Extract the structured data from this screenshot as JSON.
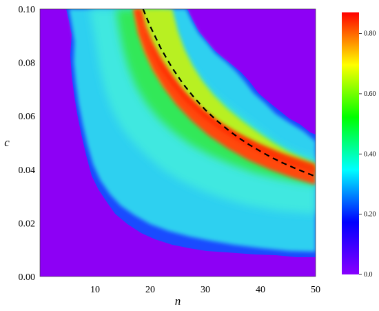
{
  "chart_data": {
    "type": "heatmap",
    "title": "",
    "xlabel": "n",
    "ylabel": "c",
    "xlim": [
      0,
      50
    ],
    "ylim": [
      0,
      0.1
    ],
    "x_ticks": [
      "10",
      "20",
      "30",
      "40",
      "50"
    ],
    "y_ticks": [
      "0.00",
      "0.02",
      "0.04",
      "0.06",
      "0.08",
      "0.10"
    ],
    "colorbar": {
      "range": [
        0,
        0.87
      ],
      "tick_labels": [
        "0.0",
        "0.20",
        "0.40",
        "0.60",
        "0.80"
      ],
      "tick_values": [
        0,
        0.2,
        0.4,
        0.6,
        0.8
      ],
      "colors": [
        "#8800ff",
        "#0000ff",
        "#00ffff",
        "#00ff00",
        "#ffff00",
        "#ff0000"
      ]
    },
    "background_color": "#8d00f5",
    "region": {
      "description_points_lower_boundary": [
        [
          5.5,
          0.1
        ],
        [
          6.5,
          0.07
        ],
        [
          8.5,
          0.04
        ],
        [
          12,
          0.027
        ],
        [
          16,
          0.02
        ],
        [
          22,
          0.013
        ],
        [
          28,
          0.01
        ],
        [
          35,
          0.0095
        ],
        [
          41,
          0.008
        ],
        [
          50,
          0.008
        ]
      ],
      "description_points_upper_boundary": [
        [
          23,
          0.1
        ],
        [
          26,
          0.093
        ],
        [
          30,
          0.082
        ],
        [
          35,
          0.07
        ],
        [
          40,
          0.061
        ],
        [
          45,
          0.055
        ],
        [
          50,
          0.05
        ]
      ]
    },
    "dashed_curve": {
      "x": [
        18.7,
        20,
        22,
        24,
        26,
        28,
        30,
        32,
        34,
        36,
        38,
        40,
        42,
        44,
        46,
        48,
        50
      ],
      "y": [
        0.1,
        0.0935,
        0.085,
        0.0779,
        0.0719,
        0.0668,
        0.0623,
        0.0584,
        0.055,
        0.0519,
        0.0492,
        0.0468,
        0.0445,
        0.0425,
        0.0407,
        0.039,
        0.0374
      ],
      "style": "dashed",
      "color": "#000000"
    }
  }
}
